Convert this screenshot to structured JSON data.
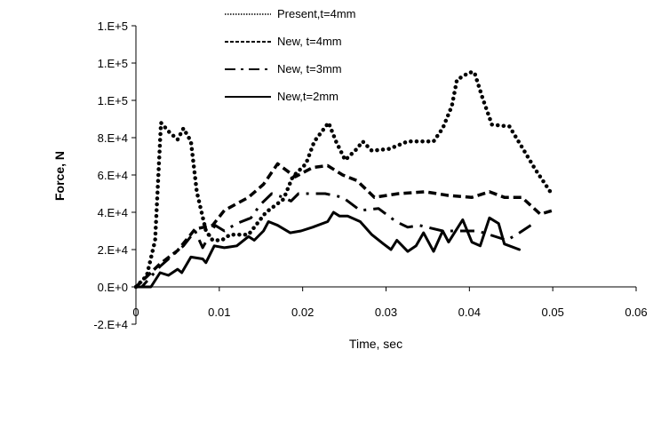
{
  "chart_data": {
    "type": "line",
    "title": "",
    "xlabel": "Time, sec",
    "ylabel": "Force, N",
    "xlim": [
      0,
      0.06
    ],
    "ylim": [
      -20000,
      140000
    ],
    "x_ticks": [
      0,
      0.01,
      0.02,
      0.03,
      0.04,
      0.05,
      0.06
    ],
    "x_tick_labels": [
      "0",
      "0.01",
      "0.02",
      "0.03",
      "0.04",
      "0.05",
      "0.06"
    ],
    "y_ticks": [
      -20000,
      0,
      20000,
      40000,
      60000,
      80000,
      100000,
      120000,
      140000
    ],
    "y_tick_labels": [
      "-2.E+4",
      "0.E+0",
      "2.E+4",
      "4.E+4",
      "6.E+4",
      "8.E+4",
      "1.E+5",
      "1.E+5",
      "1.E+5"
    ],
    "grid": false,
    "legend_position": "top",
    "series": [
      {
        "name": "Present,t=4mm",
        "style": "dotted",
        "x": [
          0,
          0.0013,
          0.0023,
          0.003,
          0.004,
          0.005,
          0.0057,
          0.0066,
          0.0073,
          0.0084,
          0.0092,
          0.0103,
          0.0113,
          0.0135,
          0.0156,
          0.0177,
          0.0188,
          0.0204,
          0.0214,
          0.0231,
          0.024,
          0.0251,
          0.0265,
          0.0272,
          0.0283,
          0.0304,
          0.0326,
          0.0357,
          0.0368,
          0.0379,
          0.0385,
          0.04,
          0.0406,
          0.0416,
          0.0427,
          0.0448,
          0.0463,
          0.0479,
          0.0497
        ],
        "y": [
          0,
          6000,
          25000,
          88000,
          83000,
          79000,
          85000,
          78000,
          51000,
          30000,
          25000,
          25000,
          28000,
          28000,
          40000,
          47000,
          59000,
          66000,
          78000,
          88000,
          78000,
          68000,
          74000,
          78000,
          73000,
          74000,
          78000,
          78000,
          85000,
          97000,
          111000,
          115000,
          115000,
          101000,
          87000,
          86000,
          75000,
          63000,
          51000
        ]
      },
      {
        "name": "New, t=4mm",
        "style": "dashed",
        "x": [
          0,
          0.0029,
          0.005,
          0.0071,
          0.0092,
          0.0106,
          0.0135,
          0.0153,
          0.017,
          0.0191,
          0.0212,
          0.023,
          0.0248,
          0.0265,
          0.0286,
          0.0315,
          0.0347,
          0.0375,
          0.0403,
          0.0424,
          0.0442,
          0.0463,
          0.0485,
          0.05
        ],
        "y": [
          0,
          12400,
          19500,
          31000,
          33000,
          41000,
          48000,
          55000,
          66000,
          59000,
          64000,
          65000,
          60000,
          57000,
          48000,
          50000,
          51000,
          49000,
          48000,
          51000,
          48000,
          48000,
          39000,
          41000
        ]
      },
      {
        "name": "New, t=3mm",
        "style": "dash-dot",
        "x": [
          0,
          0.0007,
          0.0029,
          0.0057,
          0.0071,
          0.008,
          0.0095,
          0.0106,
          0.0121,
          0.0138,
          0.0149,
          0.0163,
          0.0177,
          0.0186,
          0.0195,
          0.0209,
          0.0227,
          0.0248,
          0.0269,
          0.0291,
          0.0312,
          0.0326,
          0.034,
          0.0368,
          0.041,
          0.0445,
          0.046,
          0.0477
        ],
        "y": [
          0,
          0,
          11000,
          22000,
          30000,
          21000,
          33000,
          30000,
          34000,
          37000,
          44000,
          50000,
          48000,
          46000,
          50000,
          50000,
          50000,
          48000,
          41000,
          42000,
          35000,
          32000,
          33000,
          30000,
          30000,
          25000,
          29000,
          34000
        ]
      },
      {
        "name": "New,t=2mm",
        "style": "solid",
        "x": [
          0,
          0.0007,
          0.0018,
          0.0029,
          0.0039,
          0.005,
          0.0055,
          0.0066,
          0.008,
          0.0084,
          0.0094,
          0.0106,
          0.0121,
          0.0135,
          0.0142,
          0.0153,
          0.0159,
          0.017,
          0.0185,
          0.0198,
          0.0212,
          0.023,
          0.0237,
          0.0244,
          0.0254,
          0.0269,
          0.0283,
          0.0297,
          0.0306,
          0.0313,
          0.0326,
          0.0336,
          0.0345,
          0.0357,
          0.0368,
          0.0375,
          0.0392,
          0.0403,
          0.0413,
          0.0424,
          0.0435,
          0.0442,
          0.046
        ],
        "y": [
          0,
          0,
          0,
          7600,
          6200,
          9500,
          7600,
          16000,
          15000,
          13000,
          22000,
          21000,
          22000,
          27000,
          25000,
          30000,
          35000,
          33000,
          29000,
          30000,
          32000,
          35000,
          40000,
          38000,
          38000,
          35000,
          28000,
          23000,
          20000,
          25000,
          19000,
          22000,
          29000,
          19000,
          30000,
          24000,
          36000,
          24000,
          22000,
          37000,
          34000,
          23000,
          20000
        ]
      }
    ]
  }
}
